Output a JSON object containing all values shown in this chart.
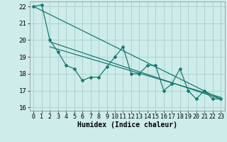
{
  "background_color": "#ceecea",
  "grid_color": "#aad4d0",
  "line_color": "#1a7a6e",
  "xlabel": "Humidex (Indice chaleur)",
  "xlim": [
    -0.5,
    23.5
  ],
  "ylim": [
    15.8,
    22.3
  ],
  "yticks": [
    16,
    17,
    18,
    19,
    20,
    21,
    22
  ],
  "xticks": [
    0,
    1,
    2,
    3,
    4,
    5,
    6,
    7,
    8,
    9,
    10,
    11,
    12,
    13,
    14,
    15,
    16,
    17,
    18,
    19,
    20,
    21,
    22,
    23
  ],
  "data_x": [
    0,
    1,
    2,
    3,
    4,
    5,
    6,
    7,
    8,
    9,
    10,
    11,
    12,
    13,
    14,
    15,
    16,
    17,
    18,
    19,
    20,
    21,
    22,
    23
  ],
  "data_y": [
    22.0,
    22.1,
    20.0,
    19.3,
    18.5,
    18.3,
    17.6,
    17.8,
    17.8,
    18.4,
    19.0,
    19.6,
    18.0,
    18.0,
    18.5,
    18.5,
    17.0,
    17.4,
    18.3,
    17.0,
    16.5,
    17.0,
    16.5,
    16.5
  ],
  "trend1_x": [
    0,
    23
  ],
  "trend1_y": [
    22.0,
    16.5
  ],
  "trend2_x": [
    2,
    23
  ],
  "trend2_y": [
    19.9,
    16.5
  ],
  "trend3_x": [
    2,
    23
  ],
  "trend3_y": [
    19.6,
    16.6
  ]
}
